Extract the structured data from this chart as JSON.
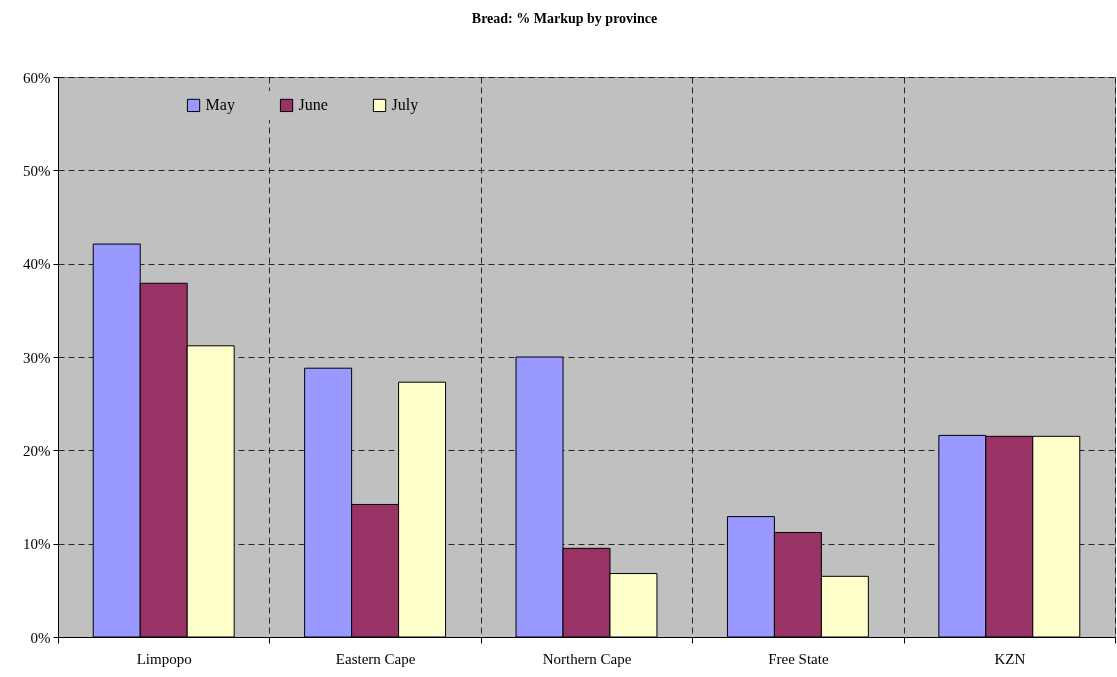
{
  "chart_data": {
    "type": "bar",
    "title": "Bread: % Markup by province",
    "categories": [
      "Limpopo",
      "Eastern Cape",
      "Northern Cape",
      "Free State",
      "KZN"
    ],
    "series": [
      {
        "name": "May",
        "color": "#9999ff",
        "values": [
          42.1,
          28.8,
          30.0,
          12.9,
          21.6
        ]
      },
      {
        "name": "June",
        "color": "#993366",
        "values": [
          37.9,
          14.2,
          9.5,
          11.2,
          21.5
        ]
      },
      {
        "name": "July",
        "color": "#ffffcc",
        "values": [
          31.2,
          27.3,
          6.8,
          6.5,
          21.5
        ]
      }
    ],
    "ylim": [
      0,
      60
    ],
    "yticks": [
      {
        "value": 0,
        "label": "0%"
      },
      {
        "value": 10,
        "label": "10%"
      },
      {
        "value": 20,
        "label": "20%"
      },
      {
        "value": 30,
        "label": "30%"
      },
      {
        "value": 40,
        "label": "40%"
      },
      {
        "value": 50,
        "label": "50%"
      },
      {
        "value": 60,
        "label": "60%"
      }
    ],
    "grid": true,
    "legend": "top left"
  }
}
